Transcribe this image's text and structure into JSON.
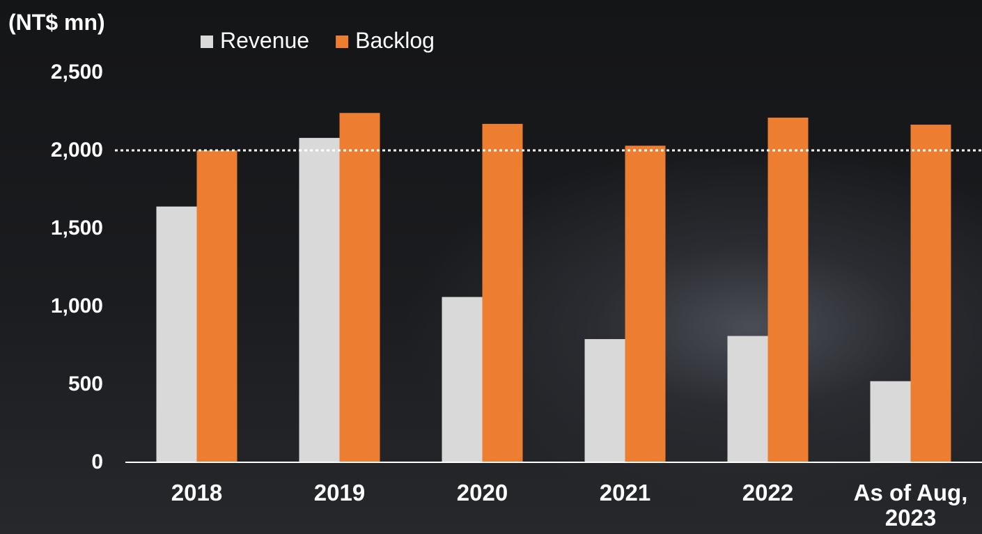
{
  "chart_data": {
    "type": "bar",
    "unit_label": "(NT$ mn)",
    "categories": [
      "2018",
      "2019",
      "2020",
      "2021",
      "2022",
      "As of Aug, 2023"
    ],
    "series": [
      {
        "name": "Revenue",
        "color": "#d9d9d9",
        "values": [
          1640,
          2080,
          1060,
          790,
          810,
          520
        ]
      },
      {
        "name": "Backlog",
        "color": "#ed7d31",
        "values": [
          2000,
          2240,
          2170,
          2030,
          2210,
          2165
        ]
      }
    ],
    "ylim": [
      0,
      2500
    ],
    "yticks": [
      0,
      500,
      {
        "value": 1000,
        "label": "1,000"
      },
      {
        "value": 1500,
        "label": "1,500"
      },
      {
        "value": 2000,
        "label": "2,000"
      },
      {
        "value": 2500,
        "label": "2,500"
      }
    ],
    "reference_line": 2000,
    "legend": "top"
  }
}
